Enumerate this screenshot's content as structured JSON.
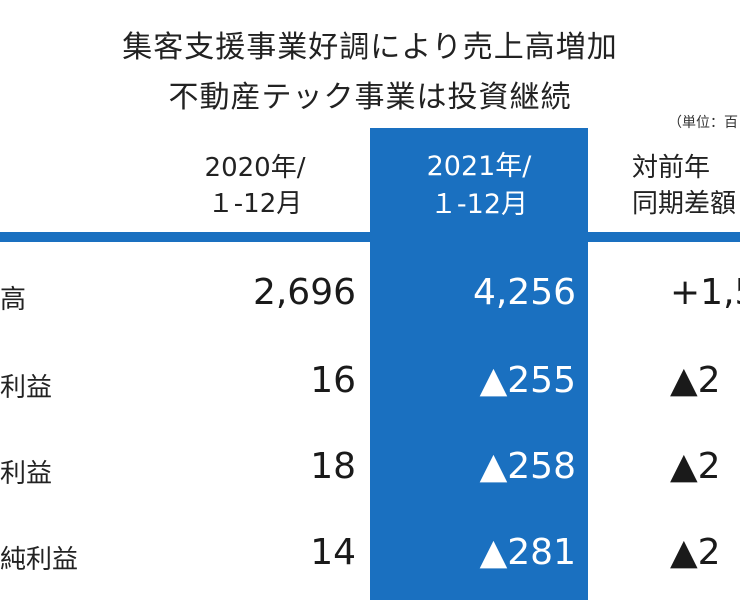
{
  "title": {
    "line1": "集客支援事業好調により売上高増加",
    "line2": "不動産テック事業は投資継続"
  },
  "unit_note": "（単位：百",
  "columns": {
    "c2020": {
      "line1": "2020年/",
      "line2": "１-12月"
    },
    "c2021": {
      "line1": "2021年/",
      "line2": "１-12月"
    },
    "diff": {
      "line1": "対前年",
      "line2": "同期差額"
    }
  },
  "rows": [
    {
      "label": "高",
      "v2020": "2,696",
      "v2021": "4,256",
      "diff": "+1,5"
    },
    {
      "label": "利益",
      "v2020": "16",
      "v2021": "▲255",
      "diff": "▲2"
    },
    {
      "label": "利益",
      "v2020": "18",
      "v2021": "▲258",
      "diff": "▲2"
    },
    {
      "label": "純利益",
      "v2020": "14",
      "v2021": "▲281",
      "diff": "▲2"
    }
  ],
  "colors": {
    "accent": "#1a70c0"
  }
}
